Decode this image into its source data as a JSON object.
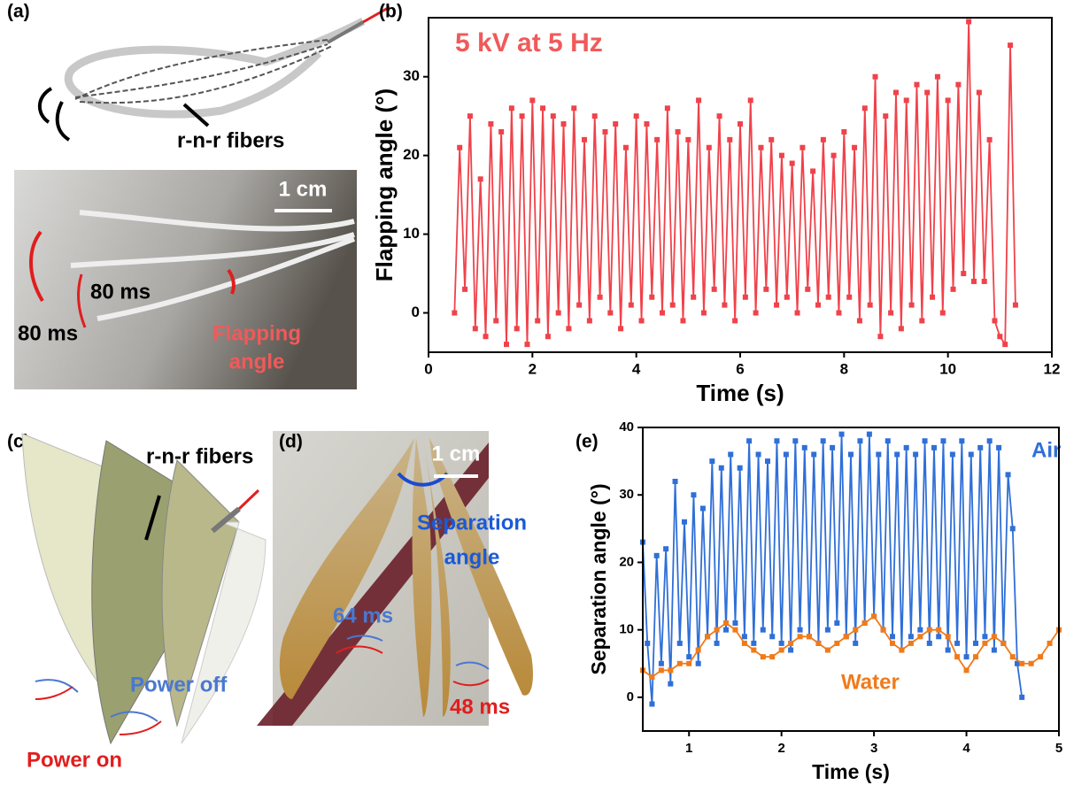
{
  "panels": {
    "a": {
      "label": "(a)",
      "fiber_label": "r-n-r fibers",
      "scale": "1 cm",
      "time_up": "80 ms",
      "time_down": "80 ms",
      "angle_label": [
        "Flapping",
        "angle"
      ]
    },
    "c": {
      "label": "(c)",
      "fiber_label": "r-n-r fibers",
      "power_off": "Power off",
      "power_on": "Power on"
    },
    "d": {
      "label": "(d)",
      "scale": "1 cm",
      "angle_label": [
        "Separation",
        "angle"
      ],
      "time_left": "64 ms",
      "time_right": "48 ms"
    }
  },
  "chart_data": [
    {
      "type": "line",
      "panel_label": "(b)",
      "annotation": "5 kV at 5 Hz",
      "x_label": "Time (s)",
      "y_label": "Flapping angle (°)",
      "xlim": [
        0,
        12
      ],
      "xticks": [
        0,
        2,
        4,
        6,
        8,
        10,
        12
      ],
      "ylim": [
        -5,
        37.5
      ],
      "yticks": [
        0,
        10,
        20,
        30
      ],
      "series": [
        {
          "color": "#f0424a",
          "x": [
            0.5,
            0.6,
            0.7,
            0.8,
            0.9,
            1.0,
            1.1,
            1.2,
            1.3,
            1.4,
            1.5,
            1.6,
            1.7,
            1.8,
            1.9,
            2.0,
            2.1,
            2.2,
            2.3,
            2.4,
            2.5,
            2.6,
            2.7,
            2.8,
            2.9,
            3.0,
            3.1,
            3.2,
            3.3,
            3.4,
            3.5,
            3.6,
            3.7,
            3.8,
            3.9,
            4.0,
            4.1,
            4.2,
            4.3,
            4.4,
            4.5,
            4.6,
            4.7,
            4.8,
            4.9,
            5.0,
            5.1,
            5.2,
            5.3,
            5.4,
            5.5,
            5.6,
            5.7,
            5.8,
            5.9,
            6.0,
            6.1,
            6.2,
            6.3,
            6.4,
            6.5,
            6.6,
            6.7,
            6.8,
            6.9,
            7.0,
            7.1,
            7.2,
            7.3,
            7.4,
            7.5,
            7.6,
            7.7,
            7.8,
            7.9,
            8.0,
            8.1,
            8.2,
            8.3,
            8.4,
            8.5,
            8.6,
            8.7,
            8.8,
            8.9,
            9.0,
            9.1,
            9.2,
            9.3,
            9.4,
            9.5,
            9.6,
            9.7,
            9.8,
            9.9,
            10.0,
            10.1,
            10.2,
            10.3,
            10.4,
            10.5,
            10.6,
            10.7,
            10.8,
            10.9,
            11.0,
            11.1,
            11.2,
            11.3
          ],
          "values": [
            0,
            21,
            3,
            25,
            -2,
            17,
            -3,
            24,
            -1,
            23,
            -4,
            26,
            -2,
            25,
            -4,
            27,
            -1,
            26,
            -3,
            25,
            0,
            24,
            -2,
            26,
            1,
            22,
            -1,
            25,
            2,
            23,
            0,
            24,
            -2,
            21,
            1,
            25,
            -1,
            24,
            2,
            22,
            0,
            26,
            1,
            23,
            -1,
            22,
            2,
            27,
            0,
            21,
            3,
            25,
            1,
            22,
            -1,
            24,
            2,
            27,
            0,
            21,
            3,
            22,
            1,
            20,
            2,
            19,
            0,
            21,
            3,
            18,
            1,
            22,
            2,
            20,
            0,
            23,
            2,
            21,
            -1,
            26,
            1,
            30,
            -3,
            25,
            0,
            28,
            -2,
            27,
            1,
            29,
            -1,
            28,
            2,
            30,
            0,
            27,
            3,
            29,
            5,
            37,
            4,
            28,
            4,
            22,
            -1,
            -3,
            -4,
            34,
            1
          ]
        }
      ]
    },
    {
      "type": "line",
      "panel_label": "(e)",
      "x_label": "Time (s)",
      "y_label": "Separation angle (°)",
      "xlim": [
        0.5,
        5
      ],
      "xticks": [
        1,
        2,
        3,
        4,
        5
      ],
      "ylim": [
        -5,
        40
      ],
      "yticks": [
        0,
        10,
        20,
        30,
        40
      ],
      "series": [
        {
          "name": "Air",
          "color": "#2f6fd8",
          "x": [
            0.5,
            0.55,
            0.6,
            0.65,
            0.7,
            0.75,
            0.8,
            0.85,
            0.9,
            0.95,
            1.0,
            1.05,
            1.1,
            1.15,
            1.2,
            1.25,
            1.3,
            1.35,
            1.4,
            1.45,
            1.5,
            1.55,
            1.6,
            1.65,
            1.7,
            1.75,
            1.8,
            1.85,
            1.9,
            1.95,
            2.0,
            2.05,
            2.1,
            2.15,
            2.2,
            2.25,
            2.3,
            2.35,
            2.4,
            2.45,
            2.5,
            2.55,
            2.6,
            2.65,
            2.7,
            2.75,
            2.8,
            2.85,
            2.9,
            2.95,
            3.0,
            3.05,
            3.1,
            3.15,
            3.2,
            3.25,
            3.3,
            3.35,
            3.4,
            3.45,
            3.5,
            3.55,
            3.6,
            3.65,
            3.7,
            3.75,
            3.8,
            3.85,
            3.9,
            3.95,
            4.0,
            4.05,
            4.1,
            4.15,
            4.2,
            4.25,
            4.3,
            4.35,
            4.4,
            4.45,
            4.5,
            4.55,
            4.6
          ],
          "values": [
            23,
            8,
            -1,
            21,
            5,
            22,
            2,
            32,
            8,
            26,
            6,
            30,
            5,
            28,
            9,
            35,
            8,
            34,
            10,
            36,
            11,
            34,
            9,
            38,
            8,
            36,
            10,
            35,
            9,
            38,
            8,
            36,
            7,
            38,
            10,
            37,
            9,
            36,
            8,
            38,
            10,
            37,
            11,
            39,
            9,
            36,
            8,
            38,
            11,
            39,
            12,
            36,
            10,
            38,
            9,
            36,
            7,
            37,
            9,
            36,
            10,
            38,
            8,
            37,
            9,
            38,
            7,
            36,
            8,
            38,
            6,
            36,
            8,
            37,
            9,
            38,
            7,
            37,
            8,
            33,
            25,
            5,
            0
          ]
        },
        {
          "name": "Water",
          "color": "#f07a1a",
          "x": [
            0.5,
            0.6,
            0.7,
            0.8,
            0.9,
            1.0,
            1.1,
            1.2,
            1.3,
            1.4,
            1.5,
            1.6,
            1.7,
            1.8,
            1.9,
            2.0,
            2.1,
            2.2,
            2.3,
            2.4,
            2.5,
            2.6,
            2.7,
            2.8,
            2.9,
            3.0,
            3.1,
            3.2,
            3.3,
            3.4,
            3.5,
            3.6,
            3.7,
            3.8,
            3.9,
            4.0,
            4.1,
            4.2,
            4.3,
            4.4,
            4.5,
            4.6,
            4.7,
            4.8,
            4.9,
            5.0
          ],
          "values": [
            4,
            3,
            4,
            4,
            5,
            5,
            7,
            9,
            10,
            11,
            10,
            8,
            7,
            6,
            6,
            7,
            8,
            9,
            9,
            8,
            7,
            8,
            9,
            10,
            11,
            12,
            10,
            8,
            7,
            8,
            9,
            10,
            10,
            9,
            6,
            4,
            6,
            8,
            9,
            8,
            6,
            5,
            5,
            6,
            8,
            10
          ]
        }
      ]
    }
  ]
}
